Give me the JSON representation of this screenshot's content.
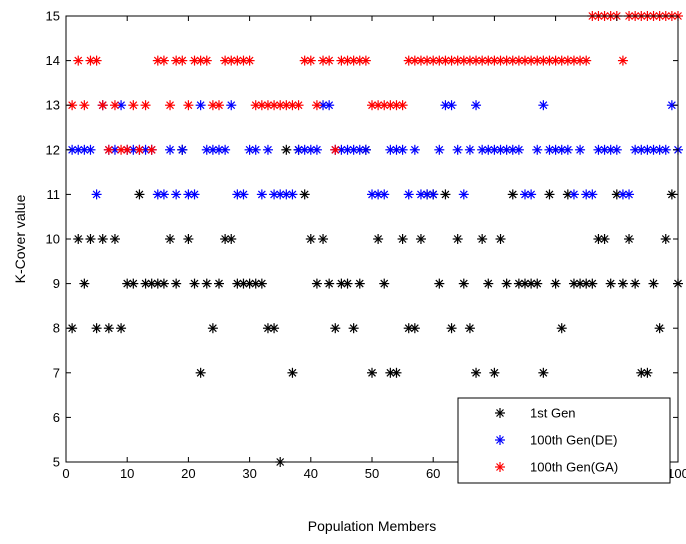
{
  "chart_data": {
    "type": "scatter",
    "xlabel": "Population Members",
    "ylabel": "K-Cover value",
    "xlim": [
      0,
      100
    ],
    "ylim": [
      5,
      15
    ],
    "xticks": [
      0,
      10,
      20,
      30,
      40,
      50,
      60,
      70,
      80,
      90,
      100
    ],
    "yticks": [
      5,
      6,
      7,
      8,
      9,
      10,
      11,
      12,
      13,
      14,
      15
    ],
    "grid": false,
    "legend_position": "bottom-right",
    "marker": "asterisk",
    "series": [
      {
        "name": "1st Gen",
        "color": "#000000",
        "points": [
          [
            1,
            8
          ],
          [
            2,
            10
          ],
          [
            3,
            9
          ],
          [
            4,
            10
          ],
          [
            5,
            8
          ],
          [
            6,
            10
          ],
          [
            7,
            8
          ],
          [
            8,
            10
          ],
          [
            9,
            8
          ],
          [
            10,
            9
          ],
          [
            11,
            9
          ],
          [
            12,
            11
          ],
          [
            13,
            9
          ],
          [
            14,
            9
          ],
          [
            15,
            9
          ],
          [
            16,
            9
          ],
          [
            17,
            10
          ],
          [
            18,
            9
          ],
          [
            19,
            12
          ],
          [
            20,
            10
          ],
          [
            21,
            9
          ],
          [
            22,
            7
          ],
          [
            23,
            9
          ],
          [
            24,
            8
          ],
          [
            25,
            9
          ],
          [
            26,
            10
          ],
          [
            27,
            10
          ],
          [
            28,
            9
          ],
          [
            29,
            9
          ],
          [
            30,
            9
          ],
          [
            31,
            9
          ],
          [
            32,
            9
          ],
          [
            33,
            8
          ],
          [
            34,
            8
          ],
          [
            35,
            5
          ],
          [
            36,
            12
          ],
          [
            37,
            7
          ],
          [
            38,
            12
          ],
          [
            39,
            11
          ],
          [
            40,
            10
          ],
          [
            41,
            9
          ],
          [
            42,
            10
          ],
          [
            43,
            9
          ],
          [
            44,
            8
          ],
          [
            45,
            9
          ],
          [
            46,
            9
          ],
          [
            47,
            8
          ],
          [
            48,
            9
          ],
          [
            49,
            12
          ],
          [
            50,
            7
          ],
          [
            51,
            10
          ],
          [
            52,
            9
          ],
          [
            53,
            7
          ],
          [
            54,
            7
          ],
          [
            55,
            10
          ],
          [
            56,
            8
          ],
          [
            57,
            8
          ],
          [
            58,
            10
          ],
          [
            59,
            11
          ],
          [
            60,
            11
          ],
          [
            61,
            9
          ],
          [
            62,
            11
          ],
          [
            63,
            8
          ],
          [
            64,
            10
          ],
          [
            65,
            9
          ],
          [
            66,
            8
          ],
          [
            67,
            7
          ],
          [
            68,
            10
          ],
          [
            69,
            9
          ],
          [
            70,
            7
          ],
          [
            71,
            10
          ],
          [
            72,
            9
          ],
          [
            73,
            11
          ],
          [
            74,
            9
          ],
          [
            75,
            9
          ],
          [
            76,
            9
          ],
          [
            77,
            9
          ],
          [
            78,
            7
          ],
          [
            79,
            11
          ],
          [
            80,
            9
          ],
          [
            81,
            8
          ],
          [
            82,
            11
          ],
          [
            83,
            9
          ],
          [
            84,
            9
          ],
          [
            85,
            9
          ],
          [
            86,
            9
          ],
          [
            87,
            10
          ],
          [
            88,
            10
          ],
          [
            89,
            9
          ],
          [
            90,
            11
          ],
          [
            91,
            9
          ],
          [
            92,
            10
          ],
          [
            93,
            9
          ],
          [
            94,
            7
          ],
          [
            95,
            7
          ],
          [
            96,
            9
          ],
          [
            97,
            8
          ],
          [
            98,
            10
          ],
          [
            99,
            11
          ],
          [
            100,
            9
          ]
        ]
      },
      {
        "name": "100th Gen(DE)",
        "color": "#0000ff",
        "points": [
          [
            1,
            12
          ],
          [
            2,
            12
          ],
          [
            3,
            12
          ],
          [
            4,
            12
          ],
          [
            5,
            11
          ],
          [
            6,
            13
          ],
          [
            7,
            12
          ],
          [
            8,
            12
          ],
          [
            9,
            13
          ],
          [
            10,
            12
          ],
          [
            11,
            12
          ],
          [
            12,
            12
          ],
          [
            13,
            12
          ],
          [
            14,
            12
          ],
          [
            15,
            11
          ],
          [
            16,
            11
          ],
          [
            17,
            12
          ],
          [
            18,
            11
          ],
          [
            19,
            12
          ],
          [
            20,
            11
          ],
          [
            21,
            11
          ],
          [
            22,
            13
          ],
          [
            23,
            12
          ],
          [
            24,
            12
          ],
          [
            25,
            12
          ],
          [
            26,
            12
          ],
          [
            27,
            13
          ],
          [
            28,
            11
          ],
          [
            29,
            11
          ],
          [
            30,
            12
          ],
          [
            31,
            12
          ],
          [
            32,
            11
          ],
          [
            33,
            12
          ],
          [
            34,
            11
          ],
          [
            35,
            11
          ],
          [
            36,
            11
          ],
          [
            37,
            11
          ],
          [
            38,
            12
          ],
          [
            39,
            12
          ],
          [
            40,
            12
          ],
          [
            41,
            12
          ],
          [
            42,
            13
          ],
          [
            43,
            13
          ],
          [
            44,
            12
          ],
          [
            45,
            12
          ],
          [
            46,
            12
          ],
          [
            47,
            12
          ],
          [
            48,
            12
          ],
          [
            49,
            12
          ],
          [
            50,
            11
          ],
          [
            51,
            11
          ],
          [
            52,
            11
          ],
          [
            53,
            12
          ],
          [
            54,
            12
          ],
          [
            55,
            12
          ],
          [
            56,
            11
          ],
          [
            57,
            12
          ],
          [
            58,
            11
          ],
          [
            59,
            11
          ],
          [
            60,
            11
          ],
          [
            61,
            12
          ],
          [
            62,
            13
          ],
          [
            63,
            13
          ],
          [
            64,
            12
          ],
          [
            65,
            11
          ],
          [
            66,
            12
          ],
          [
            67,
            13
          ],
          [
            68,
            12
          ],
          [
            69,
            12
          ],
          [
            70,
            12
          ],
          [
            71,
            12
          ],
          [
            72,
            12
          ],
          [
            73,
            12
          ],
          [
            74,
            12
          ],
          [
            75,
            11
          ],
          [
            76,
            11
          ],
          [
            77,
            12
          ],
          [
            78,
            13
          ],
          [
            79,
            12
          ],
          [
            80,
            12
          ],
          [
            81,
            12
          ],
          [
            82,
            12
          ],
          [
            83,
            11
          ],
          [
            84,
            12
          ],
          [
            85,
            11
          ],
          [
            86,
            11
          ],
          [
            87,
            12
          ],
          [
            88,
            12
          ],
          [
            89,
            12
          ],
          [
            90,
            12
          ],
          [
            91,
            11
          ],
          [
            92,
            11
          ],
          [
            93,
            12
          ],
          [
            94,
            12
          ],
          [
            95,
            12
          ],
          [
            96,
            12
          ],
          [
            97,
            12
          ],
          [
            98,
            12
          ],
          [
            99,
            13
          ],
          [
            100,
            12
          ]
        ]
      },
      {
        "name": "100th Gen(GA)",
        "color": "#ff0000",
        "points": [
          [
            1,
            13
          ],
          [
            2,
            14
          ],
          [
            3,
            13
          ],
          [
            4,
            14
          ],
          [
            5,
            14
          ],
          [
            6,
            13
          ],
          [
            7,
            12
          ],
          [
            8,
            13
          ],
          [
            9,
            12
          ],
          [
            10,
            12
          ],
          [
            11,
            13
          ],
          [
            12,
            12
          ],
          [
            13,
            13
          ],
          [
            14,
            12
          ],
          [
            15,
            14
          ],
          [
            16,
            14
          ],
          [
            17,
            13
          ],
          [
            18,
            14
          ],
          [
            19,
            14
          ],
          [
            20,
            13
          ],
          [
            21,
            14
          ],
          [
            22,
            14
          ],
          [
            23,
            14
          ],
          [
            24,
            13
          ],
          [
            25,
            13
          ],
          [
            26,
            14
          ],
          [
            27,
            14
          ],
          [
            28,
            14
          ],
          [
            29,
            14
          ],
          [
            30,
            14
          ],
          [
            31,
            13
          ],
          [
            32,
            13
          ],
          [
            33,
            13
          ],
          [
            34,
            13
          ],
          [
            35,
            13
          ],
          [
            36,
            13
          ],
          [
            37,
            13
          ],
          [
            38,
            13
          ],
          [
            39,
            14
          ],
          [
            40,
            14
          ],
          [
            41,
            13
          ],
          [
            42,
            14
          ],
          [
            43,
            14
          ],
          [
            44,
            12
          ],
          [
            45,
            14
          ],
          [
            46,
            14
          ],
          [
            47,
            14
          ],
          [
            48,
            14
          ],
          [
            49,
            14
          ],
          [
            50,
            13
          ],
          [
            51,
            13
          ],
          [
            52,
            13
          ],
          [
            53,
            13
          ],
          [
            54,
            13
          ],
          [
            55,
            13
          ],
          [
            56,
            14
          ],
          [
            57,
            14
          ],
          [
            58,
            14
          ],
          [
            59,
            14
          ],
          [
            60,
            14
          ],
          [
            61,
            14
          ],
          [
            62,
            14
          ],
          [
            63,
            14
          ],
          [
            64,
            14
          ],
          [
            65,
            14
          ],
          [
            66,
            14
          ],
          [
            67,
            14
          ],
          [
            68,
            14
          ],
          [
            69,
            14
          ],
          [
            70,
            14
          ],
          [
            71,
            14
          ],
          [
            72,
            14
          ],
          [
            73,
            14
          ],
          [
            74,
            14
          ],
          [
            75,
            14
          ],
          [
            76,
            14
          ],
          [
            77,
            14
          ],
          [
            78,
            14
          ],
          [
            79,
            14
          ],
          [
            80,
            14
          ],
          [
            81,
            14
          ],
          [
            82,
            14
          ],
          [
            83,
            14
          ],
          [
            84,
            14
          ],
          [
            85,
            14
          ],
          [
            86,
            15
          ],
          [
            87,
            15
          ],
          [
            88,
            15
          ],
          [
            89,
            15
          ],
          [
            90,
            15
          ],
          [
            91,
            14
          ],
          [
            92,
            15
          ],
          [
            93,
            15
          ],
          [
            94,
            15
          ],
          [
            95,
            15
          ],
          [
            96,
            15
          ],
          [
            97,
            15
          ],
          [
            98,
            15
          ],
          [
            99,
            15
          ],
          [
            100,
            15
          ]
        ]
      }
    ]
  }
}
